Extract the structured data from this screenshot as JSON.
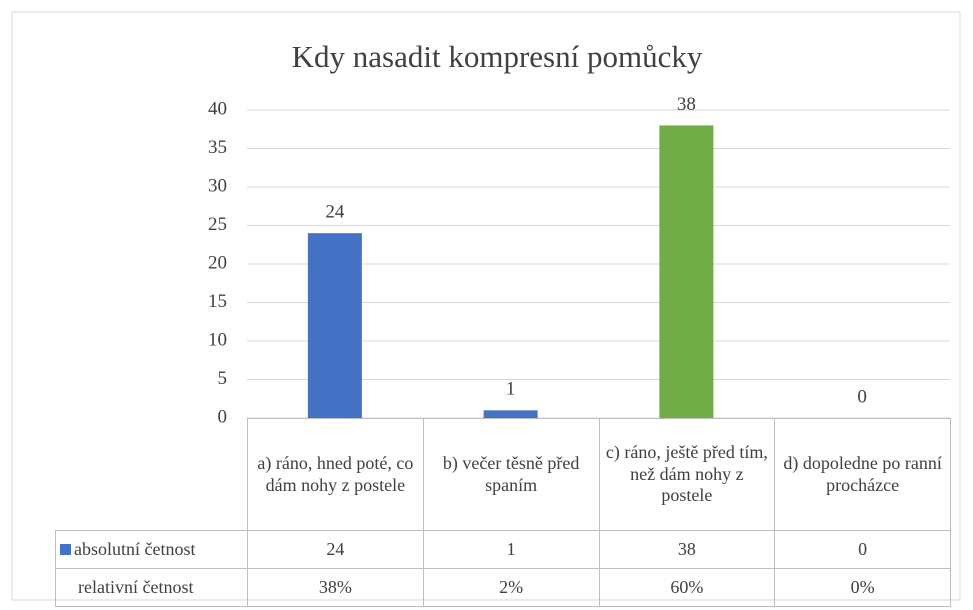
{
  "chart_data": {
    "type": "bar",
    "title": "Kdy nasadit kompresní pomůcky",
    "categories": [
      "a) ráno, hned poté, co dám nohy z postele",
      "b) večer těsně před spaním",
      "c) ráno, ještě před tím, než dám nohy z postele",
      "d) dopoledne po ranní procházce"
    ],
    "series": [
      {
        "name": "absolutní četnost",
        "color": "#4472c4",
        "colors": [
          "#4472c4",
          "#4472c4",
          "#70ad47",
          "#4472c4"
        ],
        "values": [
          24,
          1,
          38,
          0
        ]
      }
    ],
    "table_rows": [
      {
        "name": "relativní četnost",
        "values": [
          38,
          2,
          60,
          0
        ],
        "value_labels": [
          "38%",
          "2%",
          "60%",
          "0%"
        ]
      }
    ],
    "ylim": [
      0,
      40
    ],
    "yticks": [
      0,
      5,
      10,
      15,
      20,
      25,
      30,
      35,
      40
    ],
    "grid": true
  }
}
